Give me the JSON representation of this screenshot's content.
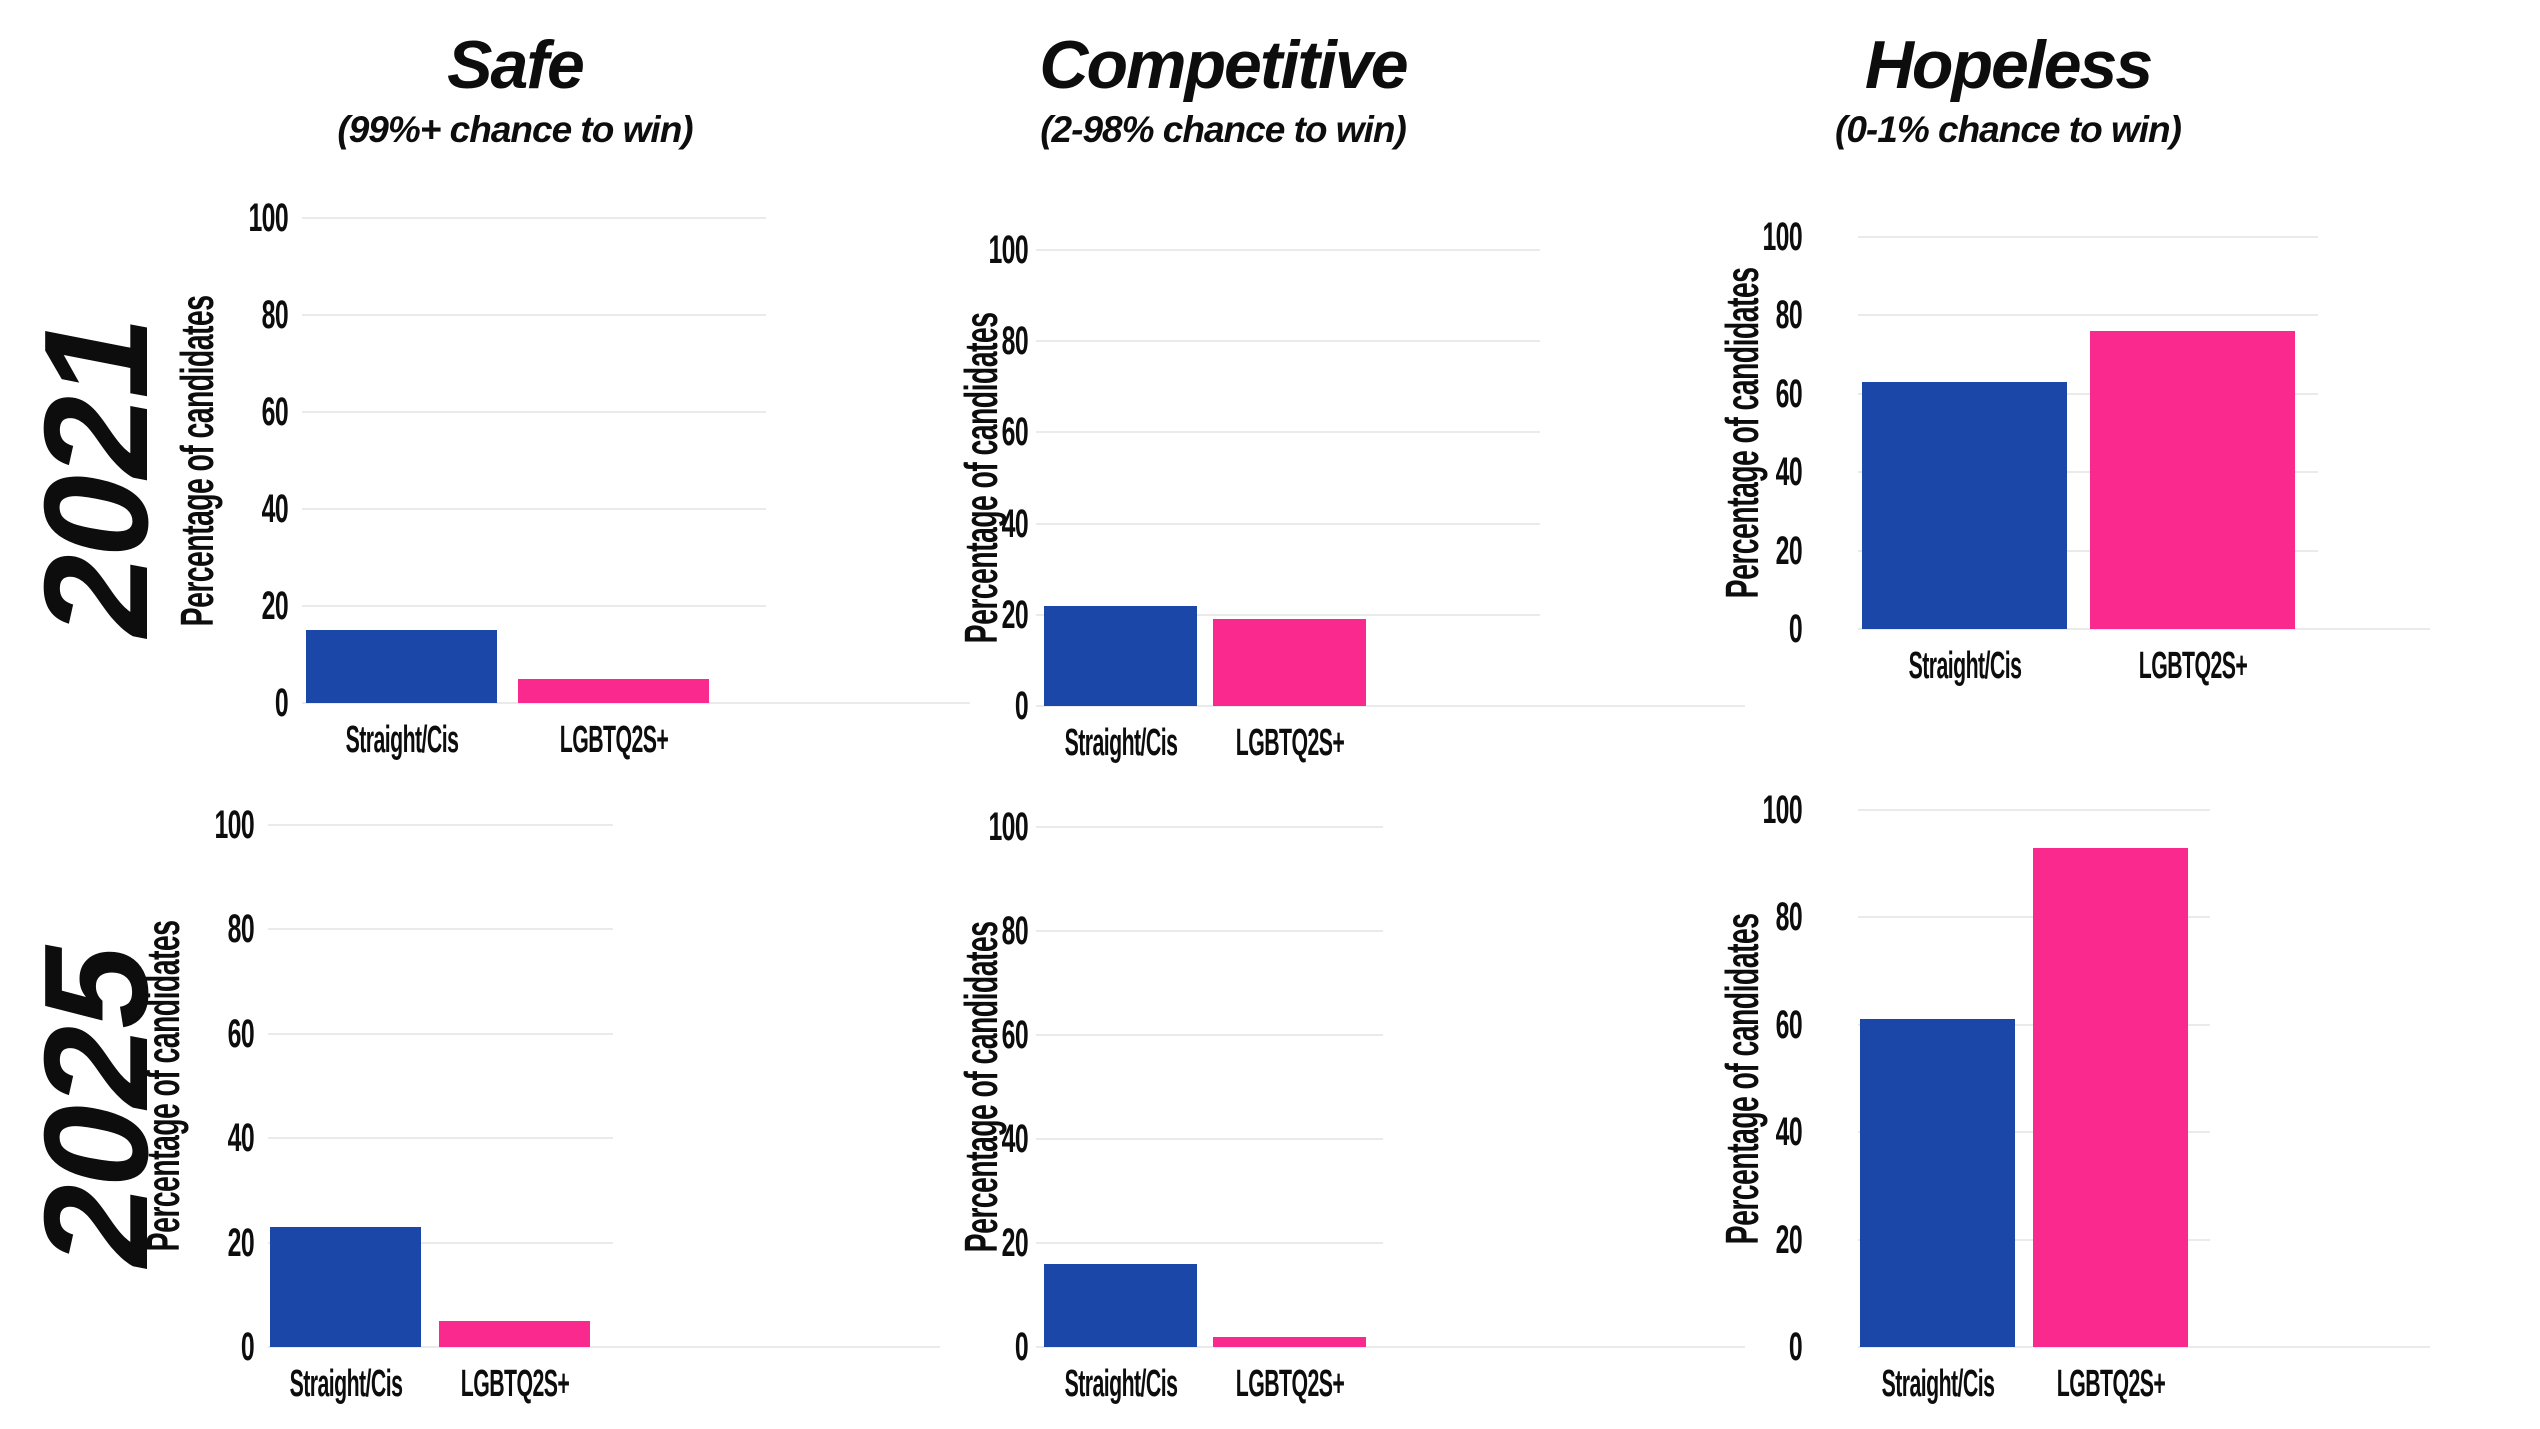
{
  "figure": {
    "columns": [
      {
        "title": "Safe",
        "subtitle": "(99%+ chance to win)"
      },
      {
        "title": "Competitive",
        "subtitle": "(2-98% chance to win)"
      },
      {
        "title": "Hopeless",
        "subtitle": "(0-1% chance to win)"
      }
    ],
    "rows": [
      {
        "label": "2021"
      },
      {
        "label": "2025"
      }
    ],
    "ylabel": "Percentage of candidates",
    "categories": [
      "Straight/Cis",
      "LGBTQ2S+"
    ],
    "yticks": [
      0,
      20,
      40,
      60,
      80,
      100
    ],
    "colors": {
      "straight_cis": "#1a47a8",
      "lgbtq2s_plus": "#f9298e",
      "gridline": "#eaeaea",
      "text": "#0d0d0d"
    }
  },
  "chart_data": [
    {
      "type": "bar",
      "row": "2021",
      "column": "Safe",
      "title": "2021 – Safe (99%+ chance to win)",
      "categories": [
        "Straight/Cis",
        "LGBTQ2S+"
      ],
      "values": [
        15,
        5
      ],
      "xlabel": "",
      "ylabel": "Percentage of candidates",
      "yticks": [
        0,
        20,
        40,
        60,
        80,
        100
      ],
      "ylim": [
        0,
        100
      ],
      "grid": true,
      "legend_position": "none"
    },
    {
      "type": "bar",
      "row": "2021",
      "column": "Competitive",
      "title": "2021 – Competitive (2-98% chance to win)",
      "categories": [
        "Straight/Cis",
        "LGBTQ2S+"
      ],
      "values": [
        22,
        19
      ],
      "xlabel": "",
      "ylabel": "Percentage of candidates",
      "yticks": [
        0,
        20,
        40,
        60,
        80,
        100
      ],
      "ylim": [
        0,
        100
      ],
      "grid": true,
      "legend_position": "none"
    },
    {
      "type": "bar",
      "row": "2021",
      "column": "Hopeless",
      "title": "2021 – Hopeless (0-1% chance to win)",
      "categories": [
        "Straight/Cis",
        "LGBTQ2S+"
      ],
      "values": [
        63,
        76
      ],
      "xlabel": "",
      "ylabel": "Percentage of candidates",
      "yticks": [
        0,
        20,
        40,
        60,
        80,
        100
      ],
      "ylim": [
        0,
        100
      ],
      "grid": true,
      "legend_position": "none"
    },
    {
      "type": "bar",
      "row": "2025",
      "column": "Safe",
      "title": "2025 – Safe (99%+ chance to win)",
      "categories": [
        "Straight/Cis",
        "LGBTQ2S+"
      ],
      "values": [
        23,
        5
      ],
      "xlabel": "",
      "ylabel": "Percentage of candidates",
      "yticks": [
        0,
        20,
        40,
        60,
        80,
        100
      ],
      "ylim": [
        0,
        100
      ],
      "grid": true,
      "legend_position": "none"
    },
    {
      "type": "bar",
      "row": "2025",
      "column": "Competitive",
      "title": "2025 – Competitive (2-98% chance to win)",
      "categories": [
        "Straight/Cis",
        "LGBTQ2S+"
      ],
      "values": [
        16,
        2
      ],
      "xlabel": "",
      "ylabel": "Percentage of candidates",
      "yticks": [
        0,
        20,
        40,
        60,
        80,
        100
      ],
      "ylim": [
        0,
        100
      ],
      "grid": true,
      "legend_position": "none"
    },
    {
      "type": "bar",
      "row": "2025",
      "column": "Hopeless",
      "title": "2025 – Hopeless (0-1% chance to win)",
      "categories": [
        "Straight/Cis",
        "LGBTQ2S+"
      ],
      "values": [
        61,
        93
      ],
      "xlabel": "",
      "ylabel": "Percentage of candidates",
      "yticks": [
        0,
        20,
        40,
        60,
        80,
        100
      ],
      "ylim": [
        0,
        100
      ],
      "grid": true,
      "legend_position": "none"
    }
  ]
}
